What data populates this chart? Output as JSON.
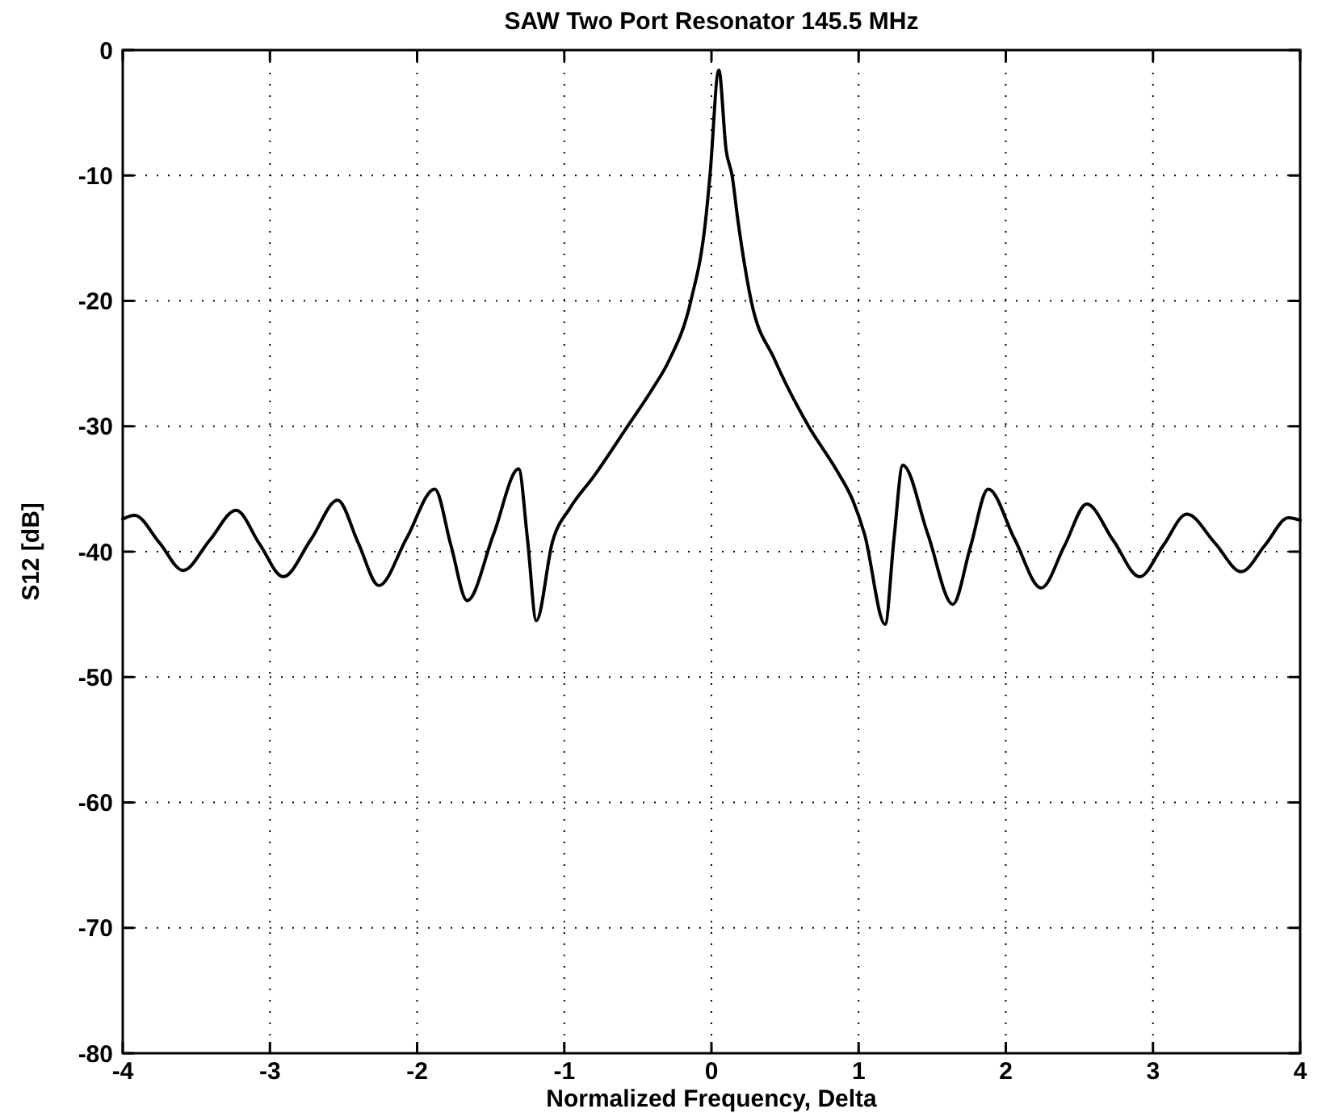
{
  "chart_data": {
    "type": "line",
    "title": "SAW Two Port Resonator 145.5 MHz",
    "xlabel": "Normalized Frequency, Delta",
    "ylabel": "S12 [dB]",
    "xlim": [
      -4,
      4
    ],
    "xticks": [
      -4,
      -3,
      -2,
      -1,
      0,
      1,
      2,
      3,
      4
    ],
    "ylim": [
      -80,
      0
    ],
    "yticks": [
      -80,
      -70,
      -60,
      -50,
      -40,
      -30,
      -20,
      -10,
      0
    ],
    "grid": true,
    "marker": "none",
    "line_style": "solid",
    "series": [
      {
        "color": "#000000",
        "x": [
          -4,
          -3.92,
          -3.75,
          -3.59,
          -3.41,
          -3.23,
          -3.07,
          -2.91,
          -2.72,
          -2.54,
          -2.4,
          -2.26,
          -2.07,
          -1.88,
          -1.77,
          -1.66,
          -1.48,
          -1.31,
          -1.25,
          -1.19,
          -1.08,
          -0.96,
          -0.8,
          -0.57,
          -0.4,
          -0.29,
          -0.14,
          -0.04,
          -0.01,
          0.05,
          0.1,
          0.14,
          0.18,
          0.27,
          0.43,
          0.66,
          0.85,
          0.96,
          1.04,
          1.18,
          1.24,
          1.3,
          1.47,
          1.64,
          1.76,
          1.88,
          2.06,
          2.24,
          2.4,
          2.55,
          2.73,
          2.91,
          3.07,
          3.23,
          3.42,
          3.6,
          3.76,
          3.92,
          4
        ],
        "values": [
          -37.4,
          -37.1,
          -39.3,
          -41.5,
          -39.1,
          -36.7,
          -39.4,
          -42,
          -39,
          -35.9,
          -39.3,
          -42.7,
          -38.9,
          -35,
          -39.5,
          -43.9,
          -38.6,
          -33.4,
          -39,
          -45.5,
          -39.2,
          -36.5,
          -34,
          -30,
          -27,
          -24.8,
          -20,
          -13.6,
          -10,
          -1.6,
          -8,
          -10,
          -13.6,
          -20,
          -24.7,
          -30,
          -33.5,
          -35.9,
          -38.6,
          -45.8,
          -39,
          -33.1,
          -38.6,
          -44.2,
          -39.6,
          -35,
          -39,
          -42.9,
          -39.5,
          -36.2,
          -39.1,
          -42,
          -39.5,
          -37,
          -39.3,
          -41.6,
          -39.5,
          -37.3,
          -37.5
        ]
      }
    ]
  }
}
